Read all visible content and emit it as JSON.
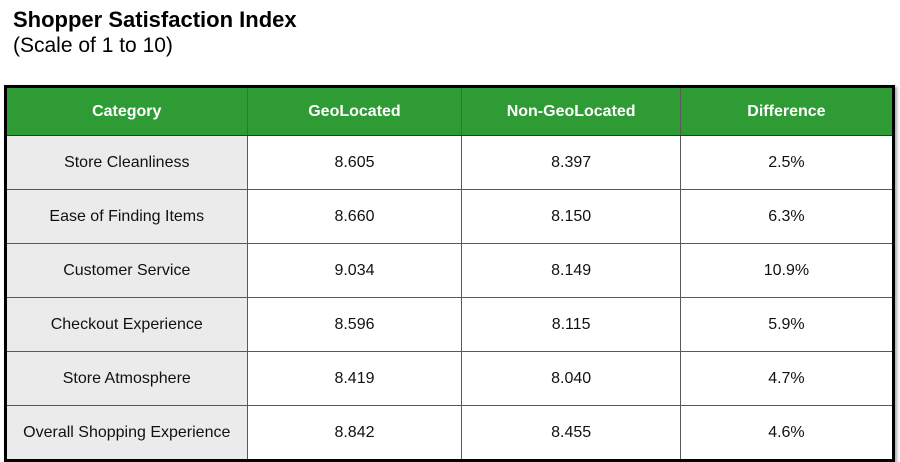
{
  "title": "Shopper Satisfaction Index",
  "subtitle": "(Scale of 1 to 10)",
  "colors": {
    "header_bg": "#2E9B34",
    "header_text": "#FFFFFF",
    "category_cell_bg": "#EBEBEB",
    "outer_border": "#000000",
    "inner_border": "#595959"
  },
  "chart_data": {
    "type": "table",
    "title": "Shopper Satisfaction Index",
    "subtitle": "(Scale of 1 to 10)",
    "columns": [
      "Category",
      "GeoLocated",
      "Non-GeoLocated",
      "Difference"
    ],
    "rows": [
      {
        "category": "Store Cleanliness",
        "geolocated": "8.605",
        "non_geolocated": "8.397",
        "difference": "2.5%"
      },
      {
        "category": "Ease of Finding Items",
        "geolocated": "8.660",
        "non_geolocated": "8.150",
        "difference": "6.3%"
      },
      {
        "category": "Customer Service",
        "geolocated": "9.034",
        "non_geolocated": "8.149",
        "difference": "10.9%"
      },
      {
        "category": "Checkout Experience",
        "geolocated": "8.596",
        "non_geolocated": "8.115",
        "difference": "5.9%"
      },
      {
        "category": "Store Atmosphere",
        "geolocated": "8.419",
        "non_geolocated": "8.040",
        "difference": "4.7%"
      },
      {
        "category": "Overall Shopping Experience",
        "geolocated": "8.842",
        "non_geolocated": "8.455",
        "difference": "4.6%"
      }
    ]
  }
}
